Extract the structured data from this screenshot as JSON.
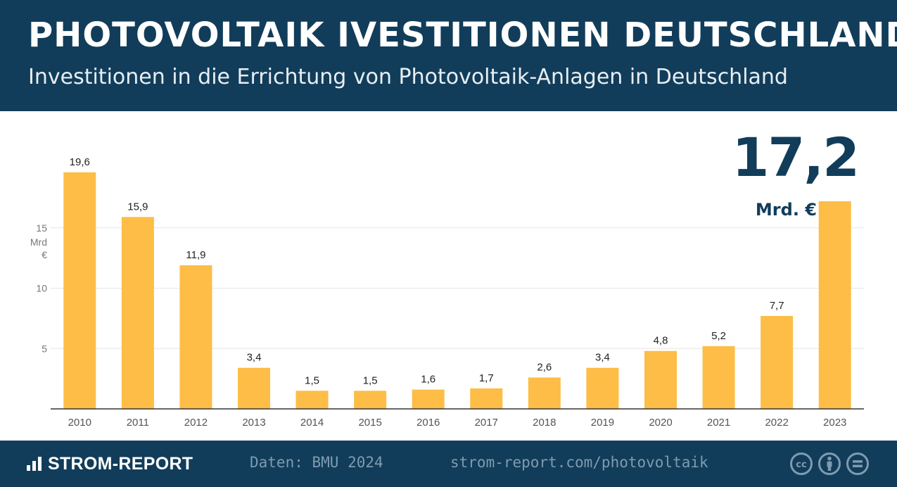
{
  "header": {
    "title": "PHOTOVOLTAIK IVESTITIONEN DEUTSCHLAND",
    "subtitle": "Investitionen in die Errichtung von Photovoltaik-Anlagen in Deutschland"
  },
  "highlight": {
    "value": "17,2",
    "unit": "Mrd. €"
  },
  "chart_data": {
    "type": "bar",
    "title": "PHOTOVOLTAIK IVESTITIONEN DEUTSCHLAND",
    "subtitle": "Investitionen in die Errichtung von Photovoltaik-Anlagen in Deutschland",
    "xlabel": "",
    "ylabel": "Mrd €",
    "categories": [
      "2010",
      "2011",
      "2012",
      "2013",
      "2014",
      "2015",
      "2016",
      "2017",
      "2018",
      "2019",
      "2020",
      "2021",
      "2022",
      "2023"
    ],
    "values": [
      19.6,
      15.9,
      11.9,
      3.4,
      1.5,
      1.5,
      1.6,
      1.7,
      2.6,
      3.4,
      4.8,
      5.2,
      7.7,
      17.2
    ],
    "value_labels": [
      "19,6",
      "15,9",
      "11,9",
      "3,4",
      "1,5",
      "1,5",
      "1,6",
      "1,7",
      "2,6",
      "3,4",
      "4,8",
      "5,2",
      "7,7",
      ""
    ],
    "yticks": [
      5,
      10,
      15
    ],
    "ytick_labels": [
      "5",
      "10",
      "15"
    ],
    "ylabel_lines": [
      "Mrd",
      "€"
    ],
    "ylim": [
      0,
      20
    ],
    "grid": true,
    "bar_color": "#fdbd46",
    "grid_color": "#e6e6e6"
  },
  "footer": {
    "brand": "STROM-REPORT",
    "source": "Daten: BMU 2024",
    "url": "strom-report.com/photovoltaik",
    "license_icons": [
      "cc-icon",
      "by-icon",
      "nd-icon"
    ]
  },
  "colors": {
    "navy": "#113d5a",
    "bar": "#fdbd46",
    "muted": "#7f9bb0"
  }
}
